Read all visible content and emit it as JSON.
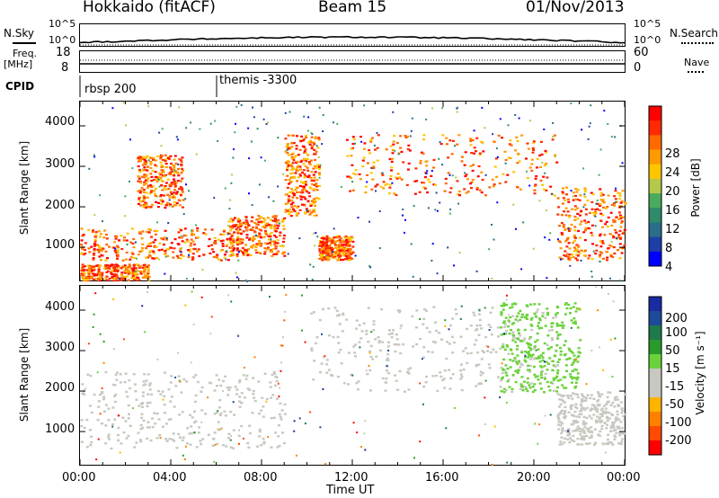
{
  "header": {
    "station": "Hokkaido (fitACF)",
    "beam": "Beam 15",
    "date": "01/Nov/2013"
  },
  "noise_panel": {
    "left_label": "N.Sky",
    "right_label": "N.Search",
    "left_ticks": [
      "10^5",
      "10^0"
    ],
    "right_ticks": [
      "10^5",
      "10^0"
    ]
  },
  "freq_panel": {
    "left_label_top": "Freq.",
    "left_label_unit": "[MHz]",
    "right_label": "Nave",
    "left_ticks": [
      "18",
      "8"
    ],
    "right_ticks": [
      "60",
      "0"
    ]
  },
  "cpid_panel": {
    "label": "CPID",
    "entries": [
      "rbsp 200",
      "themis -3300"
    ]
  },
  "x_axis": {
    "ticks": [
      "00:00",
      "04:00",
      "08:00",
      "12:00",
      "16:00",
      "20:00",
      "00:00"
    ],
    "label": "Time UT"
  },
  "y_axis": {
    "label": "Slant Range [km]",
    "ticks": [
      "1000",
      "2000",
      "3000",
      "4000"
    ]
  },
  "colorbars": {
    "power": {
      "label": "Power [dB]",
      "ticks": [
        "28",
        "24",
        "20",
        "16",
        "12",
        "8",
        "4"
      ],
      "colors": [
        "#ff0000",
        "#ff2a00",
        "#ff6a00",
        "#ff9a00",
        "#ffc600",
        "#b4c84a",
        "#4aaa5e",
        "#2e8a6a",
        "#2a6e8a",
        "#1e3ea8",
        "#0000ff"
      ]
    },
    "velocity": {
      "label": "Velocity [m s⁻¹]",
      "ticks": [
        "200",
        "100",
        "50",
        "15",
        "-15",
        "-50",
        "-100",
        "-200"
      ],
      "colors": [
        "#1a2aa0",
        "#1e4a9a",
        "#1e7a4a",
        "#2a9a2a",
        "#6ad23a",
        "#c8c8c0",
        "#c8c8c0",
        "#ffb400",
        "#ff8000",
        "#ff4a00",
        "#ff0000"
      ]
    }
  },
  "chart_data": [
    {
      "type": "heatmap",
      "name": "power",
      "x_range_hours": [
        0,
        24
      ],
      "y_range_km": [
        180,
        4600
      ],
      "features": [
        {
          "t": [
            0,
            6.5
          ],
          "r": [
            700,
            1500
          ],
          "level": "high"
        },
        {
          "t": [
            0,
            3.0
          ],
          "r": [
            200,
            600
          ],
          "level": "high"
        },
        {
          "t": [
            2.5,
            4.5
          ],
          "r": [
            2000,
            3300
          ],
          "level": "high"
        },
        {
          "t": [
            6.5,
            9.0
          ],
          "r": [
            800,
            1800
          ],
          "level": "high"
        },
        {
          "t": [
            9.0,
            10.5
          ],
          "r": [
            1800,
            3800
          ],
          "level": "high"
        },
        {
          "t": [
            10.5,
            12.0
          ],
          "r": [
            700,
            1300
          ],
          "level": "high"
        },
        {
          "t": [
            11.5,
            21.0
          ],
          "r": [
            2300,
            3800
          ],
          "level": "high"
        },
        {
          "t": [
            21.0,
            24.0
          ],
          "r": [
            700,
            2500
          ],
          "level": "high"
        }
      ]
    },
    {
      "type": "heatmap",
      "name": "velocity",
      "x_range_hours": [
        0,
        24
      ],
      "y_range_km": [
        180,
        4600
      ],
      "features": [
        {
          "t": [
            0,
            9.0
          ],
          "r": [
            600,
            2500
          ],
          "class": "ground"
        },
        {
          "t": [
            10.0,
            21.0
          ],
          "r": [
            2000,
            4100
          ],
          "class": "ground"
        },
        {
          "t": [
            18.5,
            22.0
          ],
          "r": [
            2000,
            4200
          ],
          "class": "positive"
        },
        {
          "t": [
            21.0,
            24.0
          ],
          "r": [
            700,
            2000
          ],
          "class": "ground"
        }
      ]
    }
  ]
}
